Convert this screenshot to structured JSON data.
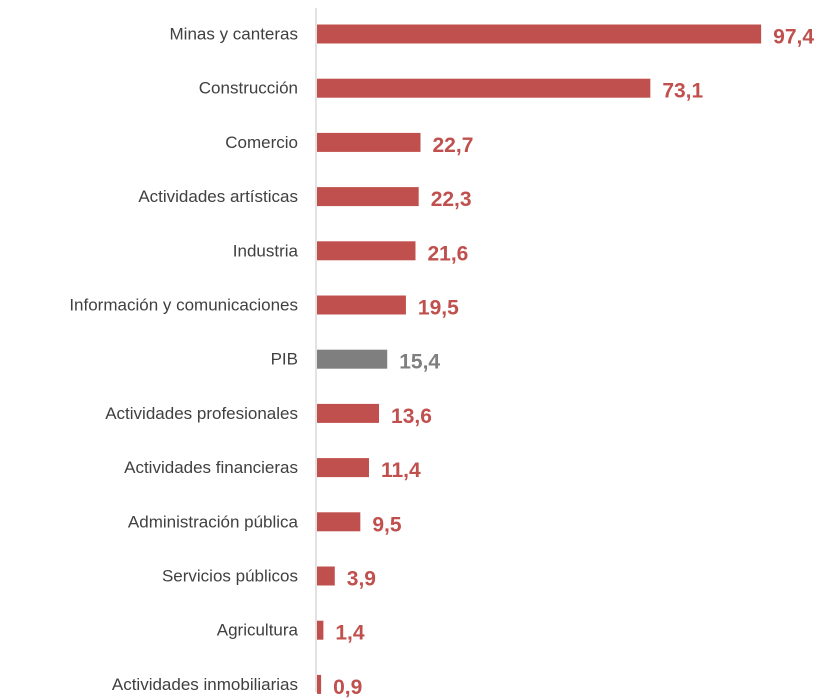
{
  "chart_data": {
    "type": "bar",
    "orientation": "horizontal",
    "categories": [
      "Minas y canteras",
      "Construcción",
      "Comercio",
      "Actividades artísticas",
      "Industria",
      "Información y comunicaciones",
      "PIB",
      "Actividades profesionales",
      "Actividades financieras",
      "Administración pública",
      "Servicios públicos",
      "Agricultura",
      "Actividades inmobiliarias"
    ],
    "values": [
      97.4,
      73.1,
      22.7,
      22.3,
      21.6,
      19.5,
      15.4,
      13.6,
      11.4,
      9.5,
      3.9,
      1.4,
      0.9
    ],
    "value_labels": [
      "97,4",
      "73,1",
      "22,7",
      "22,3",
      "21,6",
      "19,5",
      "15,4",
      "13,6",
      "11,4",
      "9,5",
      "3,9",
      "1,4",
      "0,9"
    ],
    "highlight_category": "PIB",
    "xlim": [
      0,
      100
    ],
    "title": "",
    "xlabel": "",
    "ylabel": "",
    "grid": false,
    "legend": "none",
    "colors": {
      "bar": "#c0504d",
      "highlight": "#7f7f7f",
      "category_text": "#404040",
      "axis": "#d9d9d9"
    }
  }
}
